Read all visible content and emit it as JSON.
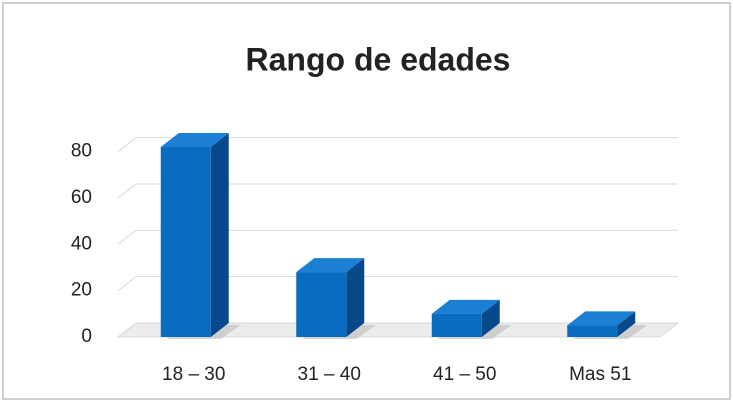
{
  "chart_data": {
    "type": "bar3d",
    "title": "Rango de edades",
    "categories": [
      "18 – 30",
      "31 – 40",
      "41 – 50",
      "Mas 51"
    ],
    "values": [
      82,
      28,
      10,
      5
    ],
    "color": "#0a6cc0",
    "ylim": [
      0,
      85
    ],
    "yticks": [
      0,
      20,
      40,
      60,
      80
    ],
    "grid": true
  }
}
